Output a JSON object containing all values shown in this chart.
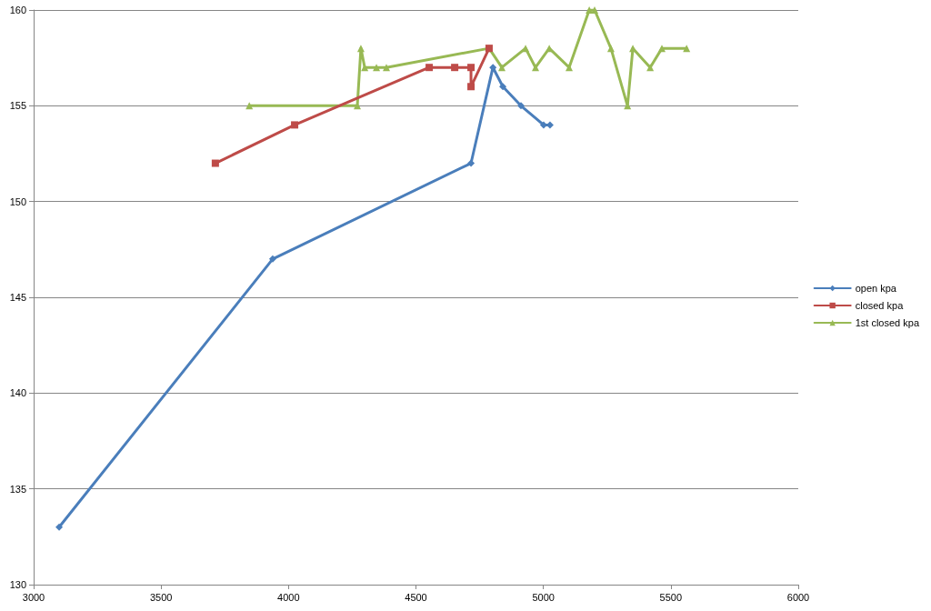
{
  "chart_data": {
    "type": "line",
    "xlim": [
      3000,
      6000
    ],
    "xticks": [
      3000,
      3500,
      4000,
      4500,
      5000,
      5500,
      6000
    ],
    "ylim": [
      130,
      160
    ],
    "yticks": [
      130,
      135,
      140,
      145,
      150,
      155,
      160
    ],
    "grid": "y",
    "legend": "right",
    "line_style": "solid",
    "series": [
      {
        "name": "open kpa",
        "color": "#4a7ebb",
        "marker": "diamond",
        "x": [
          3100,
          3938,
          4716,
          4802,
          4841,
          4912,
          5001,
          5026
        ],
        "values": [
          133,
          147,
          152,
          157,
          156,
          155,
          154,
          154
        ]
      },
      {
        "name": "closed kpa",
        "color": "#be4b48",
        "marker": "square",
        "x": [
          3713,
          4024,
          4552,
          4652,
          4716,
          4716,
          4787
        ],
        "values": [
          152,
          154,
          157,
          157,
          157,
          156,
          158
        ]
      },
      {
        "name": "1st closed kpa",
        "color": "#98b954",
        "marker": "triangle",
        "x": [
          3846,
          4270,
          4284,
          4299,
          4345,
          4384,
          4787,
          4837,
          4930,
          4969,
          5023,
          5101,
          5180,
          5201,
          5265,
          5330,
          5351,
          5419,
          5465,
          5562
        ],
        "values": [
          155,
          155,
          158,
          157,
          157,
          157,
          158,
          157,
          158,
          157,
          158,
          157,
          160,
          160,
          158,
          155,
          158,
          157,
          158,
          158
        ]
      }
    ]
  }
}
